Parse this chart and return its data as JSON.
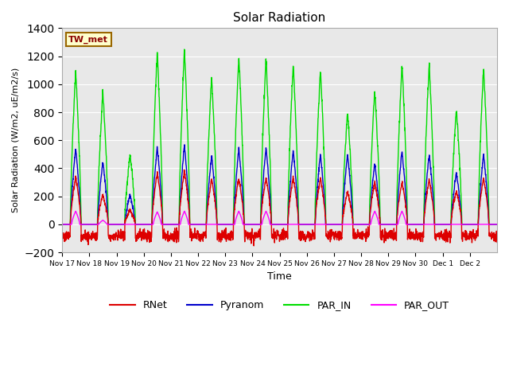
{
  "title": "Solar Radiation",
  "ylabel": "Solar Radiation (W/m2, uE/m2/s)",
  "xlabel": "Time",
  "ylim": [
    -200,
    1400
  ],
  "yticks": [
    -200,
    0,
    200,
    400,
    600,
    800,
    1000,
    1200,
    1400
  ],
  "bg_color": "#e8e8e8",
  "fig_color": "#ffffff",
  "annotation_text": "TW_met",
  "annotation_bg": "#ffffcc",
  "annotation_border": "#996600",
  "series": {
    "RNet": {
      "color": "#dd0000",
      "lw": 1.0
    },
    "Pyranom": {
      "color": "#0000cc",
      "lw": 1.0
    },
    "PAR_IN": {
      "color": "#00dd00",
      "lw": 1.0
    },
    "PAR_OUT": {
      "color": "#ff00ff",
      "lw": 1.0
    }
  },
  "n_days": 16,
  "xtick_labels": [
    "Nov 17",
    "Nov 18",
    "Nov 19",
    "Nov 20",
    "Nov 21",
    "Nov 22",
    "Nov 23",
    "Nov 24",
    "Nov 25",
    "Nov 26",
    "Nov 27",
    "Nov 28",
    "Nov 29",
    "Nov 30",
    "Dec 1",
    "Dec 2"
  ],
  "day_peaks_par_in": [
    1110,
    945,
    500,
    1230,
    1245,
    1055,
    1200,
    1185,
    1150,
    1105,
    800,
    960,
    1150,
    1140,
    830,
    1130
  ],
  "day_peaks_pyranom": [
    545,
    450,
    210,
    560,
    565,
    490,
    545,
    550,
    530,
    500,
    500,
    440,
    525,
    505,
    375,
    500
  ],
  "day_peaks_rnet": [
    340,
    215,
    100,
    370,
    380,
    320,
    330,
    335,
    335,
    330,
    235,
    305,
    300,
    320,
    240,
    330
  ],
  "day_peaks_par_out": [
    95,
    30,
    0,
    90,
    95,
    0,
    95,
    95,
    0,
    0,
    0,
    95,
    95,
    0,
    0,
    0
  ],
  "night_rnet": -80,
  "night_rnet_noise": 20
}
